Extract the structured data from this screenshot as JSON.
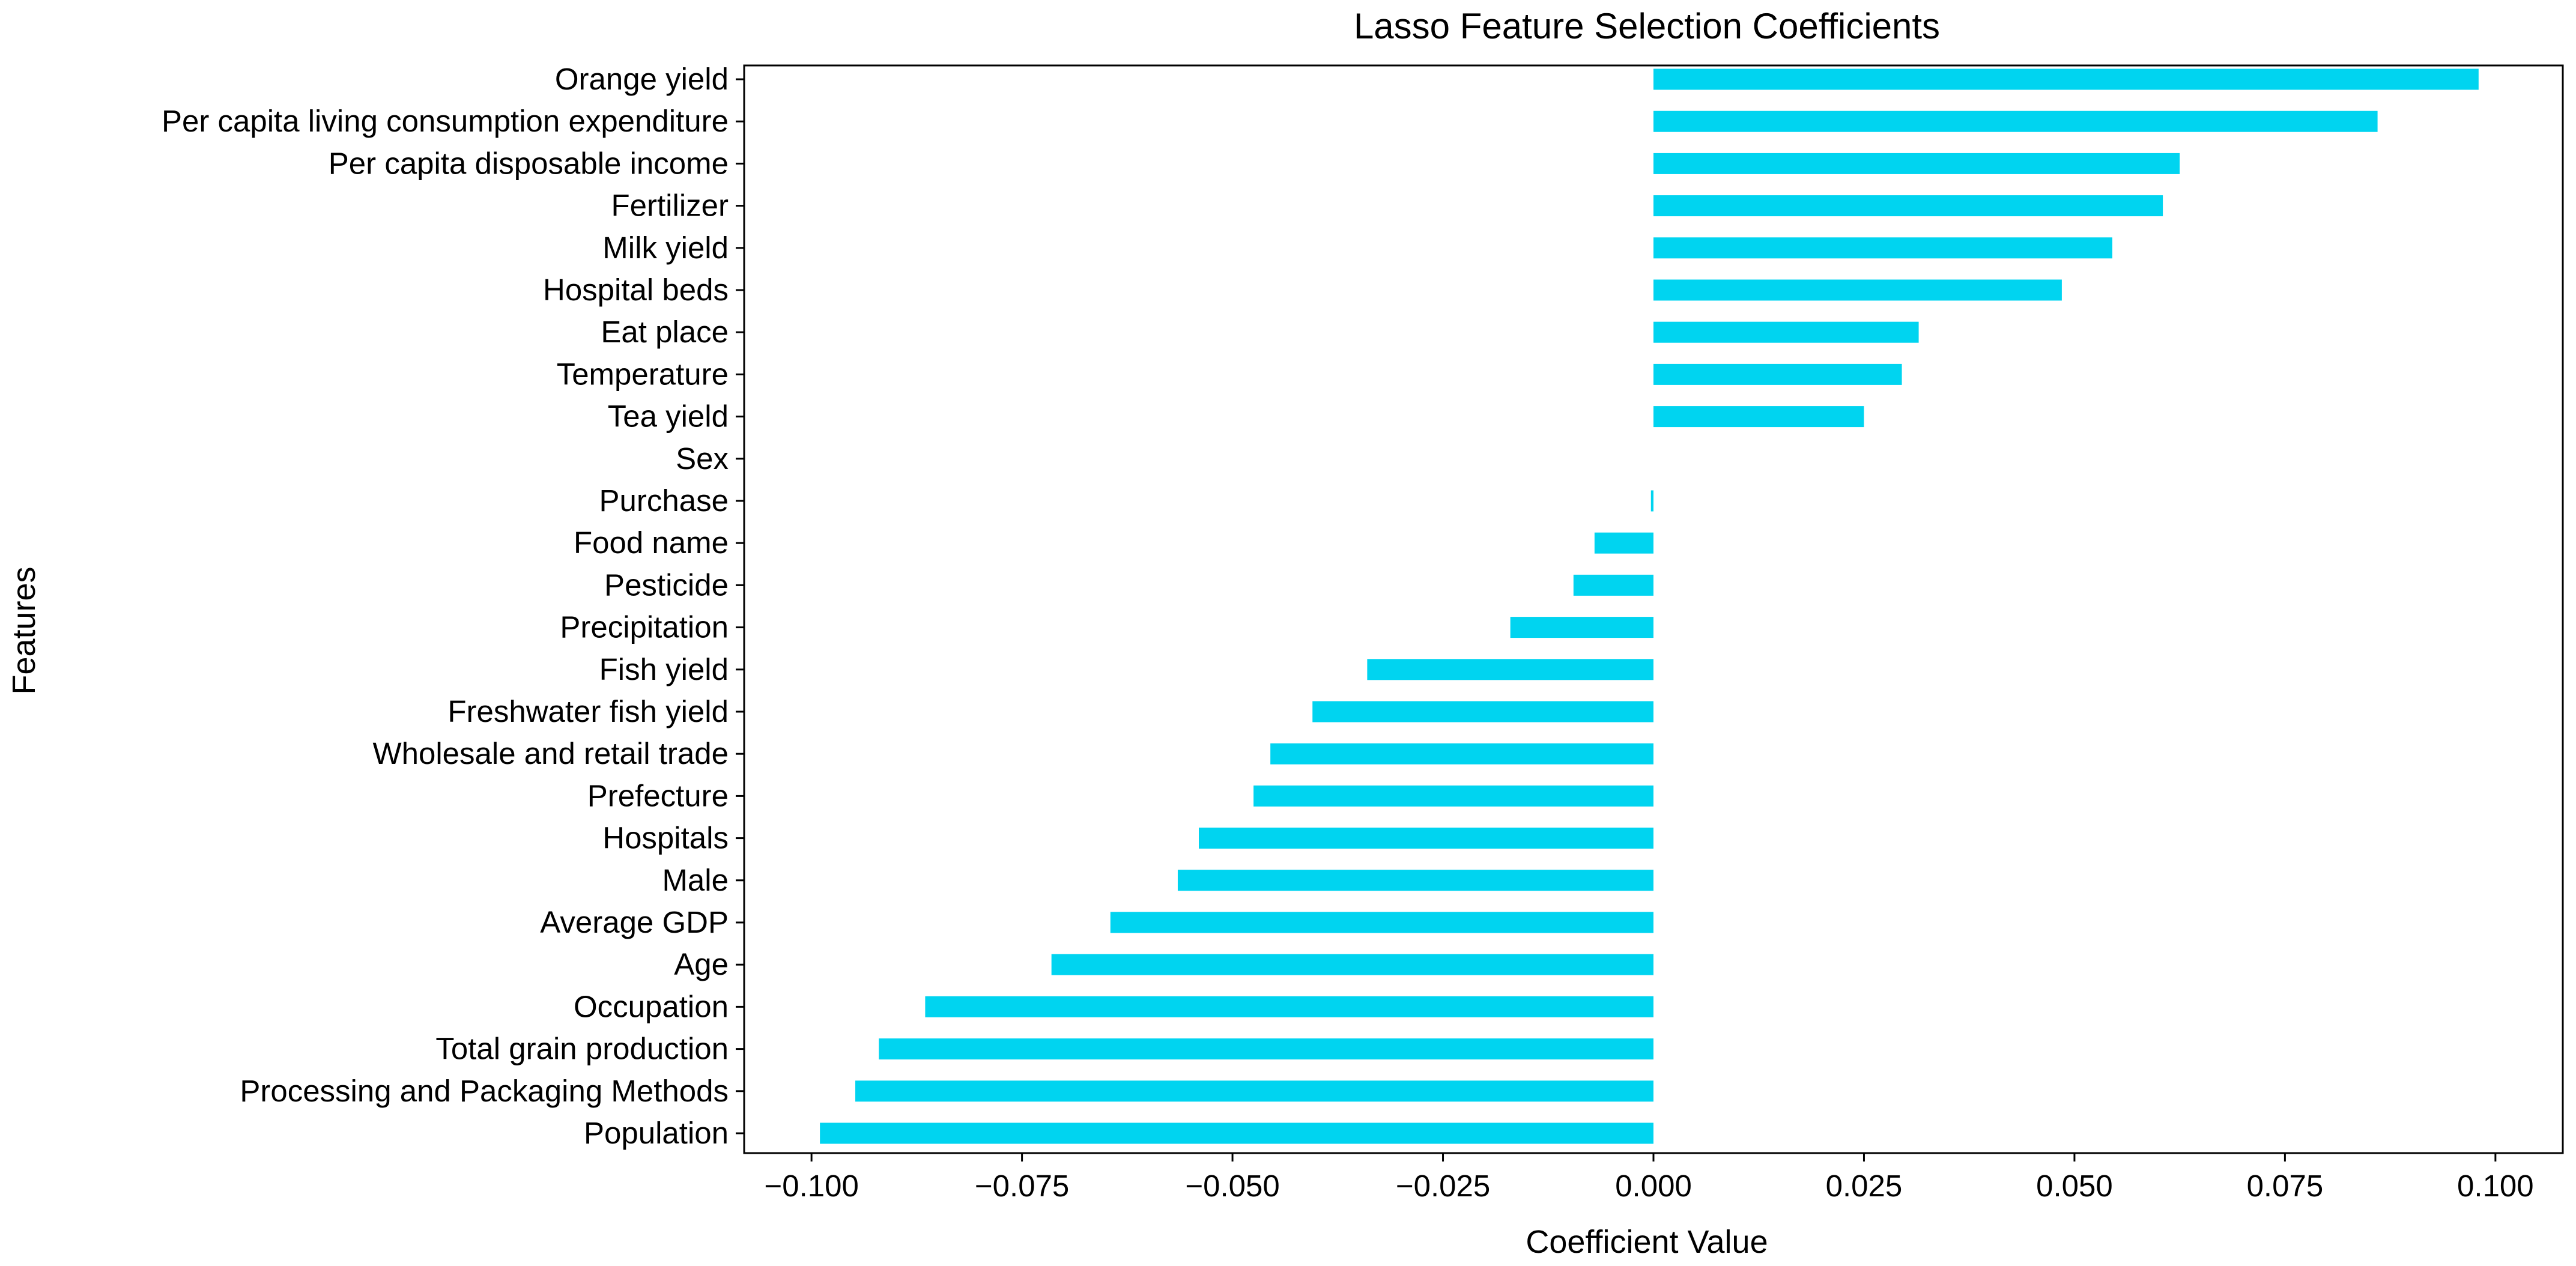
{
  "chart_data": {
    "type": "bar",
    "orientation": "horizontal",
    "title": "Lasso Feature Selection Coefficients",
    "xlabel": "Coefficient Value",
    "ylabel": "Features",
    "xlim": [
      -0.108,
      0.108
    ],
    "xticks": [
      -0.1,
      -0.075,
      -0.05,
      -0.025,
      0.0,
      0.025,
      0.05,
      0.075,
      0.1
    ],
    "xtick_labels": [
      "−0.100",
      "−0.075",
      "−0.050",
      "−0.025",
      "0.000",
      "0.025",
      "0.050",
      "0.075",
      "0.100"
    ],
    "grid": false,
    "legend": "none",
    "bar_color": "#00d4f0",
    "categories": [
      "Orange yield",
      "Per capita living consumption expenditure",
      "Per capita disposable income",
      "Fertilizer",
      "Milk yield",
      "Hospital beds",
      "Eat place",
      "Temperature",
      "Tea yield",
      "Sex",
      "Purchase",
      "Food name",
      "Pesticide",
      "Precipitation",
      "Fish yield",
      "Freshwater fish yield",
      "Wholesale and retail trade",
      "Prefecture",
      "Hospitals",
      "Male",
      "Average GDP",
      "Age",
      "Occupation",
      "Total grain production",
      "Processing and Packaging Methods",
      "Population"
    ],
    "values": [
      0.098,
      0.086,
      0.0625,
      0.0605,
      0.0545,
      0.0485,
      0.0315,
      0.0295,
      0.025,
      0.0,
      -0.0003,
      -0.007,
      -0.0095,
      -0.017,
      -0.034,
      -0.0405,
      -0.0455,
      -0.0475,
      -0.054,
      -0.0565,
      -0.0645,
      -0.0715,
      -0.0865,
      -0.092,
      -0.0948,
      -0.099
    ]
  }
}
